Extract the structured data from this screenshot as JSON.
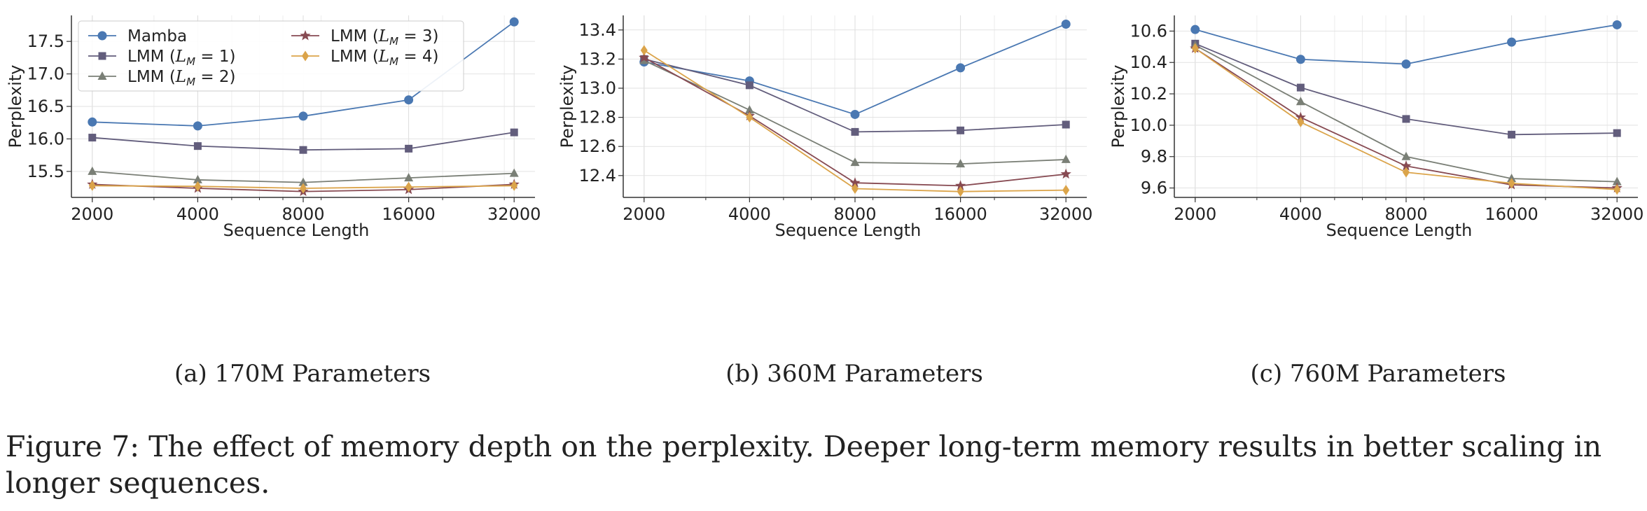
{
  "figure_caption": {
    "label": "Figure 7:",
    "text": "The effect of memory depth on the perplexity. Deeper long-term memory results in better scaling in longer sequences."
  },
  "series_style": {
    "Mamba": {
      "color": "#4a78b2",
      "marker": "circle"
    },
    "LMM1": {
      "color": "#625d7c",
      "marker": "square"
    },
    "LMM2": {
      "color": "#7a7f76",
      "marker": "triangle"
    },
    "LMM3": {
      "color": "#874a52",
      "marker": "star"
    },
    "LMM4": {
      "color": "#dba44a",
      "marker": "diamond"
    }
  },
  "legend": {
    "entries": [
      {
        "key": "Mamba",
        "prefix": "Mamba",
        "sub": "",
        "suffix": ""
      },
      {
        "key": "LMM1",
        "prefix": "LMM (",
        "sub": "M",
        "suffix": " = 1)"
      },
      {
        "key": "LMM2",
        "prefix": "LMM (",
        "sub": "M",
        "suffix": " = 2)"
      },
      {
        "key": "LMM3",
        "prefix": "LMM (",
        "sub": "M",
        "suffix": " = 3)"
      },
      {
        "key": "LMM4",
        "prefix": "LMM (",
        "sub": "M",
        "suffix": " = 4)"
      }
    ],
    "L": "L"
  },
  "chart_data": [
    {
      "type": "line",
      "caption": "(a) 170M Parameters",
      "xlabel": "Sequence Length",
      "ylabel": "Perplexity",
      "x": [
        2000,
        4000,
        8000,
        16000,
        32000
      ],
      "x_tick_labels": [
        "2000",
        "4000",
        "8000",
        "16000",
        "32000"
      ],
      "xscale": "log",
      "ylim": [
        15.1,
        17.9
      ],
      "y_ticks": [
        15.5,
        16.0,
        16.5,
        17.0,
        17.5
      ],
      "y_tick_labels": [
        "15.5",
        "16.0",
        "16.5",
        "17.0",
        "17.5"
      ],
      "legend_position": "upper-left",
      "series": [
        {
          "key": "Mamba",
          "name": "Mamba",
          "values": [
            16.26,
            16.2,
            16.35,
            16.6,
            17.8
          ]
        },
        {
          "key": "LMM1",
          "name": "LMM (L_M = 1)",
          "values": [
            16.02,
            15.89,
            15.83,
            15.85,
            16.1
          ]
        },
        {
          "key": "LMM2",
          "name": "LMM (L_M = 2)",
          "values": [
            15.5,
            15.37,
            15.33,
            15.4,
            15.47
          ]
        },
        {
          "key": "LMM3",
          "name": "LMM (L_M = 3)",
          "values": [
            15.3,
            15.24,
            15.19,
            15.22,
            15.3
          ]
        },
        {
          "key": "LMM4",
          "name": "LMM (L_M = 4)",
          "values": [
            15.28,
            15.27,
            15.24,
            15.26,
            15.28
          ]
        }
      ]
    },
    {
      "type": "line",
      "caption": "(b) 360M Parameters",
      "xlabel": "Sequence Length",
      "ylabel": "Perplexity",
      "x": [
        2000,
        4000,
        8000,
        16000,
        32000
      ],
      "x_tick_labels": [
        "2000",
        "4000",
        "8000",
        "16000",
        "32000"
      ],
      "xscale": "log",
      "ylim": [
        12.25,
        13.5
      ],
      "y_ticks": [
        12.4,
        12.6,
        12.8,
        13.0,
        13.2,
        13.4
      ],
      "y_tick_labels": [
        "12.4",
        "12.6",
        "12.8",
        "13.0",
        "13.2",
        "13.4"
      ],
      "series": [
        {
          "key": "Mamba",
          "name": "Mamba",
          "values": [
            13.18,
            13.05,
            12.82,
            13.14,
            13.44
          ]
        },
        {
          "key": "LMM1",
          "name": "LMM (L_M = 1)",
          "values": [
            13.2,
            13.02,
            12.7,
            12.71,
            12.75
          ]
        },
        {
          "key": "LMM2",
          "name": "LMM (L_M = 2)",
          "values": [
            13.19,
            12.85,
            12.49,
            12.48,
            12.51
          ]
        },
        {
          "key": "LMM3",
          "name": "LMM (L_M = 3)",
          "values": [
            13.21,
            12.81,
            12.35,
            12.33,
            12.41
          ]
        },
        {
          "key": "LMM4",
          "name": "LMM (L_M = 4)",
          "values": [
            13.26,
            12.8,
            12.31,
            12.29,
            12.3
          ]
        }
      ]
    },
    {
      "type": "line",
      "caption": "(c) 760M Parameters",
      "xlabel": "Sequence Length",
      "ylabel": "Perplexity",
      "x": [
        2000,
        4000,
        8000,
        16000,
        32000
      ],
      "x_tick_labels": [
        "2000",
        "4000",
        "8000",
        "16000",
        "32000"
      ],
      "xscale": "log",
      "ylim": [
        9.54,
        10.7
      ],
      "y_ticks": [
        9.6,
        9.8,
        10.0,
        10.2,
        10.4,
        10.6
      ],
      "y_tick_labels": [
        "9.6",
        "9.8",
        "10.0",
        "10.2",
        "10.4",
        "10.6"
      ],
      "series": [
        {
          "key": "Mamba",
          "name": "Mamba",
          "values": [
            10.61,
            10.42,
            10.39,
            10.53,
            10.64
          ]
        },
        {
          "key": "LMM1",
          "name": "LMM (L_M = 1)",
          "values": [
            10.52,
            10.24,
            10.04,
            9.94,
            9.95
          ]
        },
        {
          "key": "LMM2",
          "name": "LMM (L_M = 2)",
          "values": [
            10.51,
            10.15,
            9.8,
            9.66,
            9.64
          ]
        },
        {
          "key": "LMM3",
          "name": "LMM (L_M = 3)",
          "values": [
            10.49,
            10.05,
            9.74,
            9.62,
            9.6
          ]
        },
        {
          "key": "LMM4",
          "name": "LMM (L_M = 4)",
          "values": [
            10.49,
            10.02,
            9.7,
            9.63,
            9.59
          ]
        }
      ]
    }
  ]
}
